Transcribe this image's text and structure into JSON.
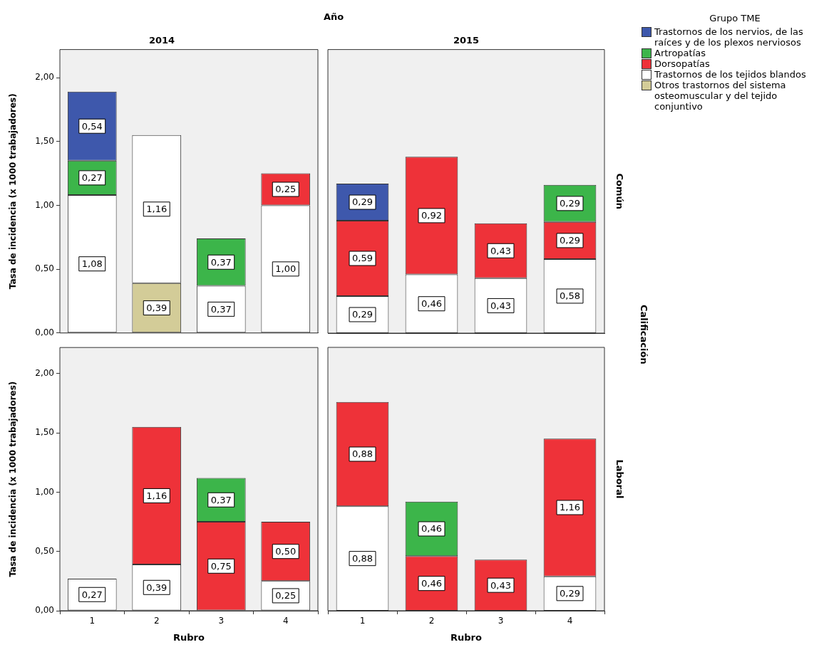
{
  "chart_data": [
    {
      "type": "bar",
      "stacked": true,
      "title": "2014",
      "ylabel": "Tasa de incidencia (x 1000 trabajadores)",
      "annotations": [
        "Año"
      ],
      "tick_labels": "y",
      "categories": [
        "1",
        "2",
        "3",
        "4"
      ],
      "ylim": [
        0,
        2.22
      ],
      "yticks": [
        {
          "value": 0,
          "label": "0,00"
        },
        {
          "value": 0.5,
          "label": "0,50"
        },
        {
          "value": 1,
          "label": "1,00"
        },
        {
          "value": 1.5,
          "label": "1,50"
        },
        {
          "value": 2,
          "label": "2,00"
        }
      ],
      "series": [
        {
          "color": "#d3cc98",
          "values": [
            null,
            0.39,
            null,
            null
          ],
          "value_labels": [
            null,
            "0,39",
            null,
            null
          ]
        },
        {
          "color": "#ffffff",
          "values": [
            1.08,
            1.16,
            0.37,
            1.0
          ],
          "value_labels": [
            "1,08",
            "1,16",
            "0,37",
            "1,00"
          ]
        },
        {
          "color": "#ee3239",
          "values": [
            null,
            null,
            null,
            0.25
          ],
          "value_labels": [
            null,
            null,
            null,
            "0,25"
          ]
        },
        {
          "color": "#3cb54a",
          "values": [
            0.27,
            null,
            0.37,
            null
          ],
          "value_labels": [
            "0,27",
            null,
            "0,37",
            null
          ]
        },
        {
          "color": "#3e58ac",
          "values": [
            0.54,
            null,
            null,
            null
          ],
          "value_labels": [
            "0,54",
            null,
            null,
            null
          ]
        }
      ]
    },
    {
      "type": "bar",
      "stacked": true,
      "title": "2015",
      "y2label": "Común",
      "annotations": [
        "Calificación"
      ],
      "tick_labels": false,
      "legend": "right",
      "legend_title": "Grupo TME",
      "categories": [
        "1",
        "2",
        "3",
        "4"
      ],
      "ylim": [
        0,
        2.22
      ],
      "series": [
        {
          "name": "Otros trastornos del sistema osteomuscular y del tejido conjuntivo",
          "color": "#d3cc98",
          "values": [
            null,
            null,
            null,
            null
          ]
        },
        {
          "name": "Trastornos de los tejidos blandos",
          "color": "#ffffff",
          "values": [
            0.29,
            0.46,
            0.43,
            0.58
          ],
          "value_labels": [
            "0,29",
            "0,46",
            "0,43",
            "0,58"
          ]
        },
        {
          "name": "Dorsopatías",
          "color": "#ee3239",
          "values": [
            0.59,
            0.92,
            0.43,
            0.29
          ],
          "value_labels": [
            "0,59",
            "0,92",
            "0,43",
            "0,29"
          ]
        },
        {
          "name": "Artropatías",
          "color": "#3cb54a",
          "values": [
            null,
            null,
            null,
            0.29
          ],
          "value_labels": [
            null,
            null,
            null,
            "0,29"
          ]
        },
        {
          "name": "Trastornos de los nervios, de las raíces y de los plexos nerviosos",
          "color": "#3e58ac",
          "values": [
            0.29,
            null,
            null,
            null
          ],
          "value_labels": [
            "0,29",
            null,
            null,
            null
          ]
        }
      ]
    },
    {
      "type": "bar",
      "stacked": true,
      "xlabel": "Rubro",
      "ylabel": "Tasa de incidencia (x 1000 trabajadores)",
      "categories": [
        "1",
        "2",
        "3",
        "4"
      ],
      "ylim": [
        0,
        2.22
      ],
      "yticks": [
        {
          "value": 0,
          "label": "0,00"
        },
        {
          "value": 0.5,
          "label": "0,50"
        },
        {
          "value": 1,
          "label": "1,00"
        },
        {
          "value": 1.5,
          "label": "1,50"
        },
        {
          "value": 2,
          "label": "2,00"
        }
      ],
      "series": [
        {
          "color": "#ffffff",
          "values": [
            0.27,
            0.39,
            null,
            0.25
          ],
          "value_labels": [
            "0,27",
            "0,39",
            null,
            "0,25"
          ]
        },
        {
          "color": "#ee3239",
          "values": [
            null,
            1.16,
            0.75,
            0.5
          ],
          "value_labels": [
            null,
            "1,16",
            "0,75",
            "0,50"
          ]
        },
        {
          "color": "#3cb54a",
          "values": [
            null,
            null,
            0.37,
            null
          ],
          "value_labels": [
            null,
            null,
            "0,37",
            null
          ]
        }
      ]
    },
    {
      "type": "bar",
      "stacked": true,
      "xlabel": "Rubro",
      "y2label": "Laboral",
      "tick_labels": "x",
      "categories": [
        "1",
        "2",
        "3",
        "4"
      ],
      "ylim": [
        0,
        2.22
      ],
      "series": [
        {
          "color": "#ffffff",
          "values": [
            0.88,
            null,
            null,
            0.29
          ],
          "value_labels": [
            "0,88",
            null,
            null,
            "0,29"
          ]
        },
        {
          "color": "#ee3239",
          "values": [
            0.88,
            0.46,
            0.43,
            1.16
          ],
          "value_labels": [
            "0,88",
            "0,46",
            "0,43",
            "1,16"
          ]
        },
        {
          "color": "#3cb54a",
          "values": [
            null,
            0.46,
            null,
            null
          ],
          "value_labels": [
            null,
            "0,46",
            null,
            null
          ]
        }
      ]
    }
  ]
}
